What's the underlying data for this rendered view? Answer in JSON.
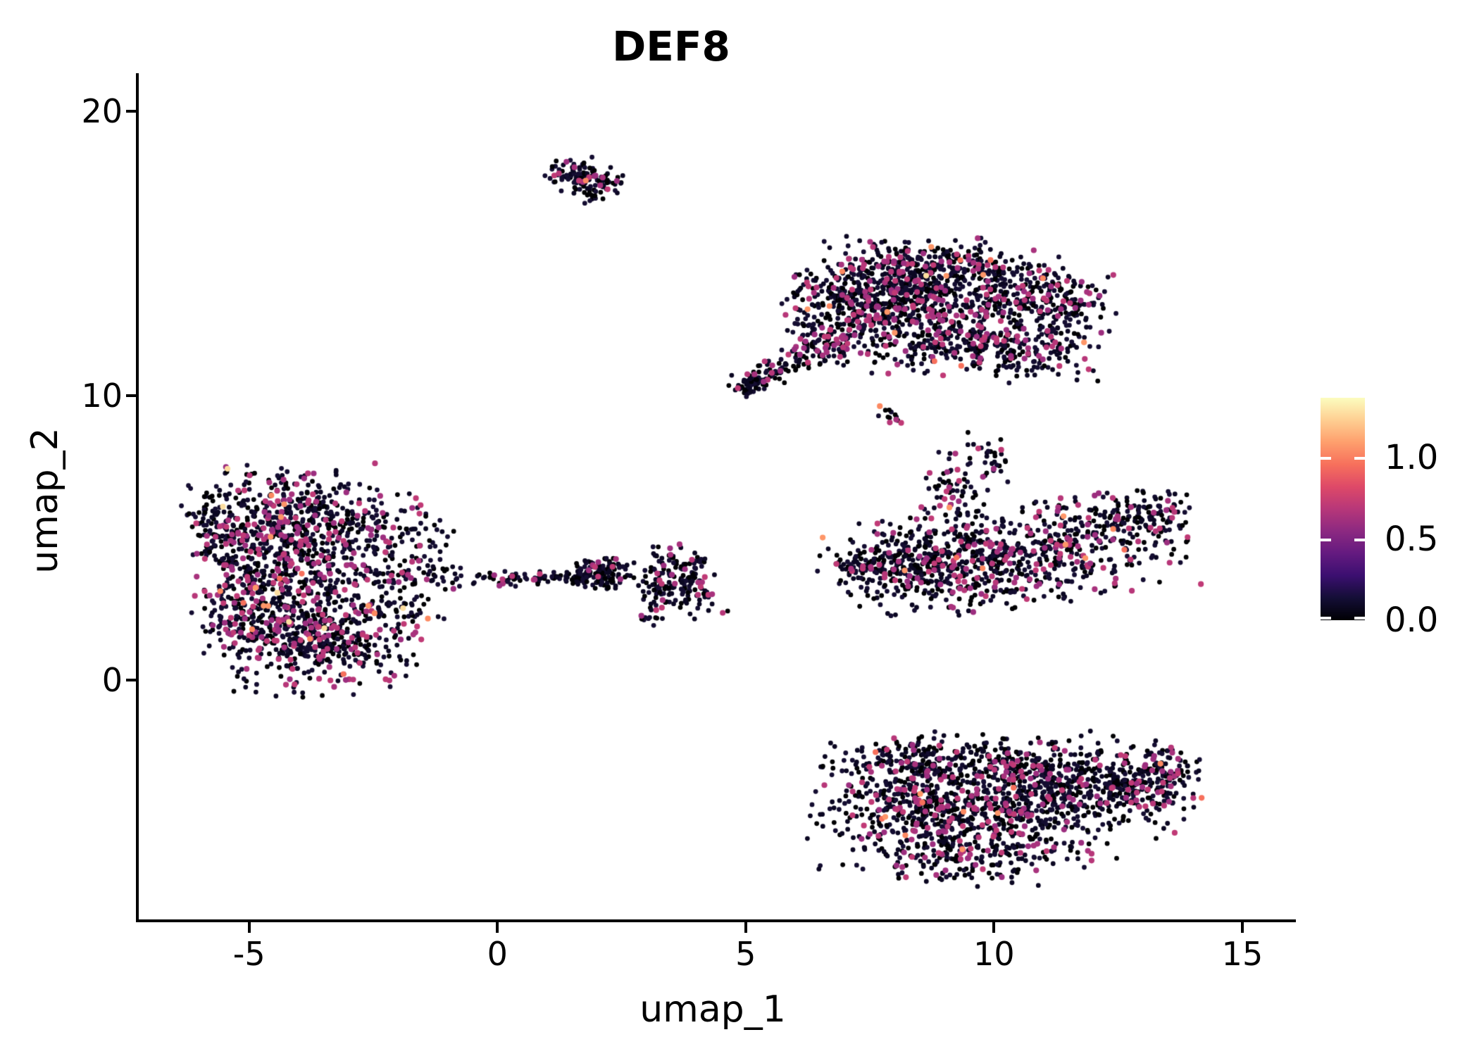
{
  "figure": {
    "title": "DEF8"
  },
  "axes": {
    "xlabel": "umap_1",
    "ylabel": "umap_2",
    "x_ticks": [
      {
        "label": "-5",
        "value": -5
      },
      {
        "label": "0",
        "value": 0
      },
      {
        "label": "5",
        "value": 5
      },
      {
        "label": "10",
        "value": 10
      },
      {
        "label": "15",
        "value": 15
      }
    ],
    "y_ticks": [
      {
        "label": "0",
        "value": 0
      },
      {
        "label": "10",
        "value": 10
      },
      {
        "label": "20",
        "value": 20
      }
    ],
    "x_range": [
      -7.25,
      16.05
    ],
    "y_range": [
      -8.45,
      21.3
    ]
  },
  "colorbar": {
    "colormap": "magma",
    "vmax": 1.37,
    "ticks": [
      {
        "label": "0.0",
        "value": 0.0
      },
      {
        "label": "0.5",
        "value": 0.5
      },
      {
        "label": "1.0",
        "value": 1.0
      }
    ]
  },
  "chart_data": {
    "type": "scatter",
    "title": "DEF8",
    "xlabel": "umap_1",
    "ylabel": "umap_2",
    "xlim": [
      -7.25,
      16.05
    ],
    "ylim": [
      -8.45,
      21.3
    ],
    "grid": false,
    "legend_position": "right-colorbar",
    "point_px_radius": {
      "base": 3.4,
      "highlight": 4.1
    },
    "palette": {
      "zero": [
        "#000004",
        "#0b0722",
        "#140d31"
      ],
      "mid": [
        "#b73779",
        "#a8327d",
        "#c03a76",
        "#9c2e7f"
      ],
      "high": [
        "#fc8961",
        "#f7705c",
        "#fe9668"
      ],
      "top": [
        "#fddea0"
      ]
    },
    "clusters": [
      {
        "name": "top-small-cluster",
        "frac": {
          "mid": 0.1,
          "high": 0.0,
          "top": 0.0
        },
        "blobs": [
          [
            1.65,
            17.75,
            0.33,
            0.28,
            0,
            80
          ],
          [
            2.1,
            17.5,
            0.25,
            0.22,
            0,
            36
          ],
          [
            1.95,
            16.95,
            0.15,
            0.28,
            0,
            14
          ]
        ]
      },
      {
        "name": "upper-right-large-cluster",
        "frac": {
          "mid": 0.15,
          "high": 0.004,
          "top": 0.001
        },
        "blobs": [
          [
            8.3,
            13.6,
            1.05,
            0.8,
            -5,
            700
          ],
          [
            8.9,
            14.7,
            0.85,
            0.4,
            0,
            130
          ],
          [
            10.7,
            13.5,
            0.6,
            0.6,
            0,
            190
          ],
          [
            11.6,
            13.1,
            0.4,
            0.55,
            0,
            60
          ],
          [
            9.3,
            11.8,
            1.15,
            0.55,
            -8,
            280
          ],
          [
            10.7,
            11.6,
            0.7,
            0.5,
            0,
            100
          ],
          [
            6.9,
            12.6,
            0.6,
            0.85,
            0,
            170
          ],
          [
            5.15,
            10.45,
            0.3,
            0.2,
            35,
            70
          ],
          [
            5.85,
            11.05,
            0.38,
            0.22,
            35,
            45
          ],
          [
            6.45,
            11.65,
            0.3,
            0.25,
            35,
            45
          ],
          [
            7.95,
            9.3,
            0.13,
            0.16,
            0,
            12
          ]
        ]
      },
      {
        "name": "mid-right-cluster",
        "frac": {
          "mid": 0.16,
          "high": 0.006,
          "top": 0.0
        },
        "blobs": [
          [
            10.4,
            4.3,
            1.55,
            0.8,
            8,
            560
          ],
          [
            8.6,
            4.0,
            0.85,
            0.75,
            0,
            280
          ],
          [
            7.3,
            4.05,
            0.5,
            0.22,
            0,
            45
          ],
          [
            9.15,
            6.5,
            0.32,
            0.75,
            5,
            75
          ],
          [
            9.95,
            7.7,
            0.26,
            0.5,
            0,
            32
          ],
          [
            12.4,
            5.6,
            0.75,
            0.5,
            15,
            130
          ],
          [
            13.35,
            5.95,
            0.3,
            0.3,
            0,
            30
          ]
        ]
      },
      {
        "name": "left-large-cluster",
        "frac": {
          "mid": 0.17,
          "high": 0.008,
          "top": 0.002
        },
        "blobs": [
          [
            -4.3,
            5.4,
            0.9,
            1.0,
            0,
            560
          ],
          [
            -5.5,
            5.1,
            0.38,
            0.85,
            0,
            100
          ],
          [
            -3.7,
            1.5,
            1.0,
            0.9,
            0,
            560
          ],
          [
            -5.0,
            2.2,
            0.55,
            0.65,
            0,
            130
          ],
          [
            -4.0,
            3.5,
            0.75,
            0.55,
            0,
            170
          ],
          [
            -2.4,
            4.7,
            0.75,
            0.95,
            0,
            140
          ],
          [
            -1.45,
            4.9,
            0.45,
            0.65,
            0,
            28
          ],
          [
            -0.7,
            3.55,
            0.95,
            0.16,
            0,
            48
          ],
          [
            -1.7,
            2.5,
            0.35,
            0.35,
            0,
            26
          ]
        ]
      },
      {
        "name": "center-small-cluster",
        "frac": {
          "mid": 0.08,
          "high": 0.0,
          "top": 0.0
        },
        "blobs": [
          [
            2.05,
            3.75,
            0.32,
            0.24,
            0,
            140
          ],
          [
            1.0,
            3.55,
            0.5,
            0.13,
            0,
            40
          ],
          [
            0.15,
            3.5,
            0.2,
            0.12,
            0,
            10
          ]
        ]
      },
      {
        "name": "center-star-cluster",
        "frac": {
          "mid": 0.12,
          "high": 0.0,
          "top": 0.0
        },
        "blobs": [
          [
            3.6,
            3.5,
            0.38,
            0.42,
            0,
            100
          ],
          [
            3.2,
            2.9,
            0.16,
            0.32,
            0,
            20
          ],
          [
            4.05,
            2.75,
            0.28,
            0.32,
            20,
            28
          ],
          [
            3.9,
            4.2,
            0.22,
            0.28,
            0,
            22
          ],
          [
            3.3,
            4.35,
            0.16,
            0.22,
            0,
            16
          ],
          [
            3.05,
            2.2,
            0.1,
            0.16,
            0,
            9
          ]
        ]
      },
      {
        "name": "bottom-right-cluster",
        "frac": {
          "mid": 0.15,
          "high": 0.003,
          "top": 0.0
        },
        "blobs": [
          [
            8.6,
            -4.4,
            1.05,
            1.1,
            0,
            560
          ],
          [
            8.3,
            -2.7,
            0.75,
            0.35,
            0,
            100
          ],
          [
            10.5,
            -4.3,
            1.05,
            0.9,
            -5,
            400
          ],
          [
            10.4,
            -2.95,
            0.85,
            0.45,
            -10,
            130
          ],
          [
            12.3,
            -3.7,
            0.85,
            0.75,
            -15,
            320
          ],
          [
            13.3,
            -3.4,
            0.38,
            0.5,
            -20,
            100
          ],
          [
            9.9,
            -6.3,
            0.95,
            0.45,
            5,
            130
          ]
        ]
      }
    ],
    "extra_points": [
      {
        "x": 1.78,
        "y": 17.55,
        "c": "high"
      },
      {
        "x": 7.7,
        "y": 9.62,
        "c": "high"
      },
      {
        "x": 8.0,
        "y": 12.2,
        "c": "high"
      },
      {
        "x": 8.8,
        "y": 11.2,
        "c": "high"
      },
      {
        "x": -1.9,
        "y": 2.52,
        "c": "top"
      },
      {
        "x": -2.6,
        "y": 2.6,
        "c": "high"
      },
      {
        "x": -1.4,
        "y": 2.15,
        "c": "high"
      },
      {
        "x": -3.1,
        "y": 0.2,
        "c": "high"
      },
      {
        "x": 11.4,
        "y": 5.75,
        "c": "high"
      },
      {
        "x": 12.4,
        "y": 5.3,
        "c": "high"
      },
      {
        "x": 13.35,
        "y": -2.95,
        "c": "high"
      },
      {
        "x": 6.55,
        "y": 5.0,
        "c": "high"
      }
    ]
  }
}
